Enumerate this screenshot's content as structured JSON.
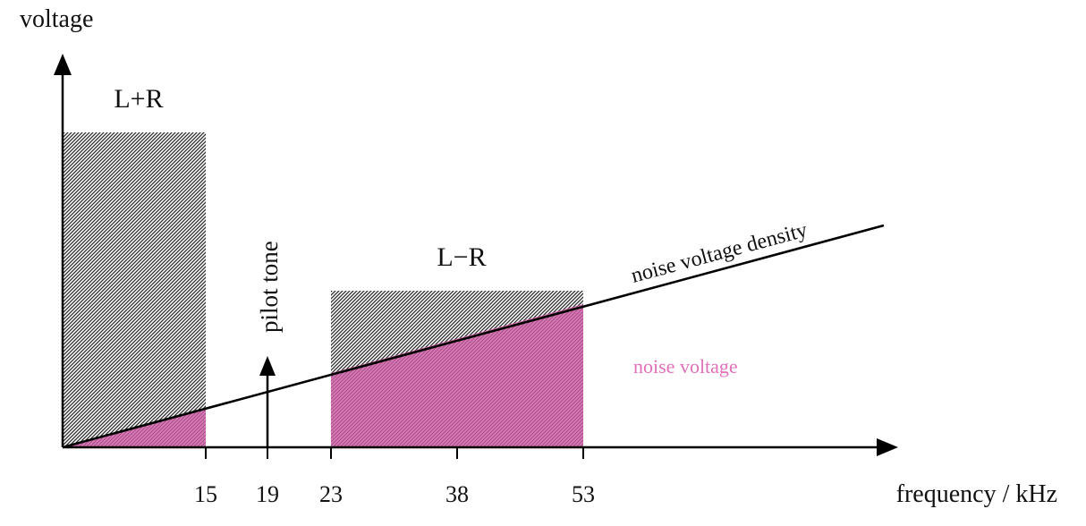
{
  "axes": {
    "y_label": "voltage",
    "x_label": "frequency / kHz"
  },
  "ticks": [
    "15",
    "19",
    "23",
    "38",
    "53"
  ],
  "bands": {
    "l_plus_r": "L+R",
    "l_minus_r": "L−R",
    "pilot": "pilot tone"
  },
  "noise": {
    "density_label": "noise voltage density",
    "voltage_label": "noise voltage"
  },
  "colors": {
    "noise_fill": "#d77ab5",
    "noise_text": "#e070b8",
    "hatch": "#2a2a2a",
    "line": "#000000"
  }
}
